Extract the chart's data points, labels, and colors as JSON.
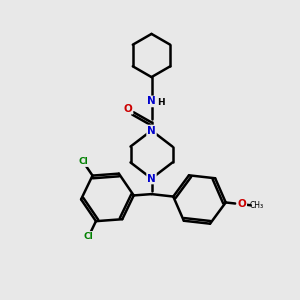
{
  "background_color": "#e8e8e8",
  "line_color": "#000000",
  "bond_width": 1.8,
  "atom_colors": {
    "N": "#0000cc",
    "O": "#cc0000",
    "Cl": "#008000",
    "C": "#000000",
    "H": "#000000"
  }
}
